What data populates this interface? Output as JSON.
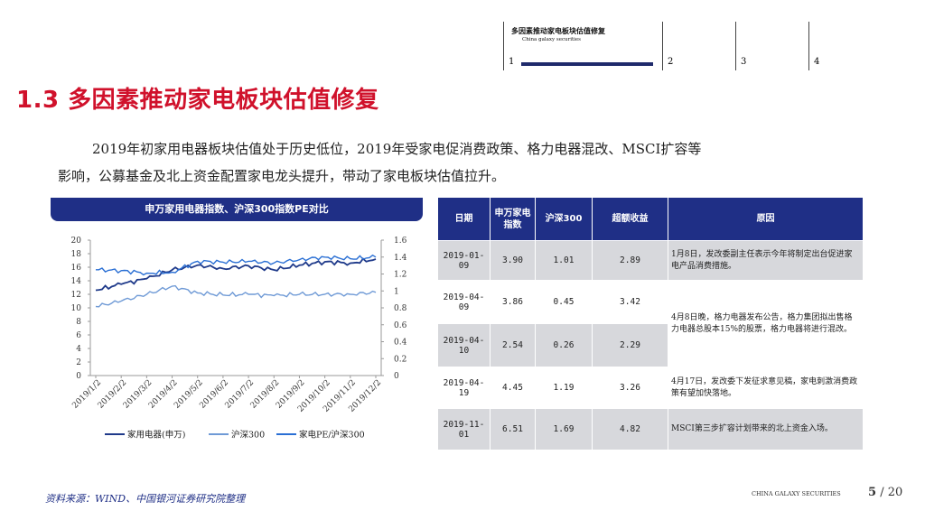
{
  "header": {
    "title": "多因素推动家电板块估值修复",
    "subtitle": "China galaxy securities",
    "nav": [
      "1",
      "2",
      "3",
      "4"
    ]
  },
  "slide_title": "1.3 多因素推动家电板块估值修复",
  "paragraph": {
    "line1": "2019年初家用电器板块估值处于历史低位，2019年受家电促消费政策、格力电器混改、MSCI扩容等",
    "line2": "影响，公募基金及北上资金配置家电龙头提升，带动了家电板块估值拉升。"
  },
  "chart_title": "申万家用电器指数、沪深300指数PE对比",
  "chart_data": {
    "type": "line",
    "x": [
      "2019/1/2",
      "2019/2/2",
      "2019/3/2",
      "2019/4/2",
      "2019/5/2",
      "2019/6/2",
      "2019/7/2",
      "2019/8/2",
      "2019/9/2",
      "2019/10/2",
      "2019/11/2",
      "2019/12/2"
    ],
    "y_left_ticks": [
      "20",
      "18",
      "16",
      "14",
      "12",
      "10",
      "8",
      "6",
      "4",
      "2",
      "0"
    ],
    "y_right_ticks": [
      "1.6",
      "1.4",
      "1.2",
      "1",
      "0.8",
      "0.6",
      "0.4",
      "0.2",
      "0"
    ],
    "ylim_left": [
      0,
      20
    ],
    "ylim_right": [
      0,
      1.6
    ],
    "series": [
      {
        "name": "家用电器(申万)",
        "color": "#1f3a8a",
        "axis": "left",
        "values": [
          12.6,
          13.5,
          14.3,
          15.6,
          16.3,
          15.8,
          16.2,
          15.6,
          16.3,
          16.8,
          16.6,
          17.2
        ]
      },
      {
        "name": "沪深300",
        "color": "#6f9ad6",
        "axis": "left",
        "values": [
          10.2,
          11.0,
          12.0,
          13.2,
          12.2,
          11.9,
          12.0,
          11.8,
          12.0,
          12.0,
          12.0,
          12.3
        ]
      },
      {
        "name": "家电PE/沪深300",
        "color": "#2a6fd4",
        "axis": "right",
        "values": [
          1.25,
          1.24,
          1.21,
          1.22,
          1.35,
          1.34,
          1.35,
          1.33,
          1.37,
          1.4,
          1.38,
          1.4
        ]
      }
    ],
    "legend": [
      "家用电器(申万)",
      "沪深300",
      "家电PE/沪深300"
    ],
    "legend_position": "bottom"
  },
  "table": {
    "headers": [
      "日期",
      "申万家电指数",
      "沪深300",
      "超额收益",
      "原因"
    ],
    "rows": [
      {
        "date": "2019-01-09",
        "sw": "3.90",
        "hs": "1.01",
        "excess": "2.89",
        "reason": "1月8日，发改委副主任表示今年将制定出台促进家电产品消费措施。"
      },
      {
        "date": "2019-04-09",
        "sw": "3.86",
        "hs": "0.45",
        "excess": "3.42",
        "reason": ""
      },
      {
        "date": "2019-04-10",
        "sw": "2.54",
        "hs": "0.26",
        "excess": "2.29",
        "reason": ""
      },
      {
        "date": "2019-04-19",
        "sw": "4.45",
        "hs": "1.19",
        "excess": "3.26",
        "reason": "4月17日，发改委下发征求意见稿，家电刺激消费政策有望加快落地。"
      },
      {
        "date": "2019-11-01",
        "sw": "6.51",
        "hs": "1.69",
        "excess": "4.82",
        "reason": "MSCI第三步扩容计划带来的北上资金入场。"
      }
    ],
    "merged_reason": "4月8日晚，格力电器发布公告，格力集团拟出售格力电器总股本15%的股票，格力电器将进行混改。"
  },
  "source": "资料来源：WIND、中国银河证券研究院整理",
  "footer_brand": "CHINA GALAXY SECURITIES",
  "page": {
    "current": "5",
    "total": "/ 20"
  }
}
